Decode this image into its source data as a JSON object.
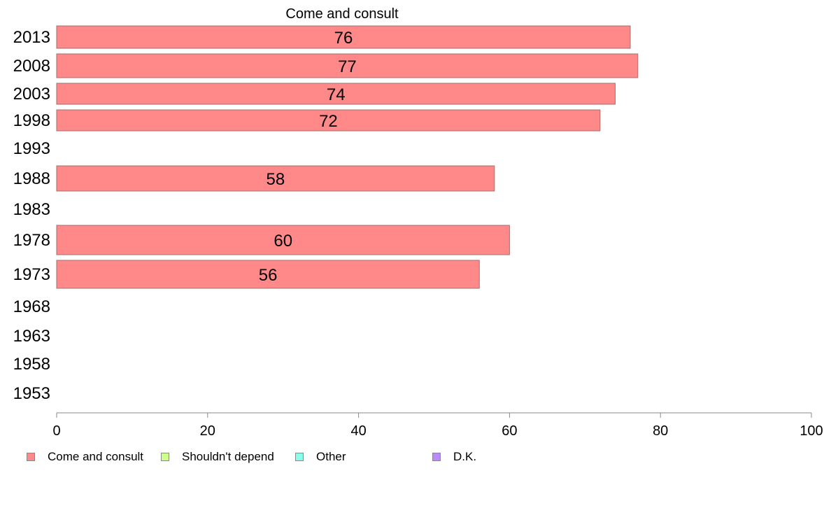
{
  "chart_data": {
    "type": "bar",
    "orientation": "horizontal",
    "title": "Come and consult",
    "categories": [
      "2013",
      "2008",
      "2003",
      "1998",
      "1993",
      "1988",
      "1983",
      "1978",
      "1973",
      "1968",
      "1963",
      "1958",
      "1953"
    ],
    "series": [
      {
        "name": "Come and consult",
        "color": "#ff8888",
        "values": [
          76,
          77,
          74,
          72,
          null,
          58,
          null,
          60,
          56,
          null,
          null,
          null,
          null
        ]
      }
    ],
    "xlim": [
      0,
      100
    ],
    "xticks": [
      "0",
      "20",
      "40",
      "60",
      "80",
      "100"
    ],
    "legend": {
      "position": "bottom",
      "items": [
        {
          "label": "Come and consult",
          "color": "#ff8888"
        },
        {
          "label": "Shouldn't depend",
          "color": "#ccff88"
        },
        {
          "label": "Other",
          "color": "#88ffee"
        },
        {
          "label": "D.K.",
          "color": "#bb88ff"
        }
      ]
    },
    "grid": false
  }
}
